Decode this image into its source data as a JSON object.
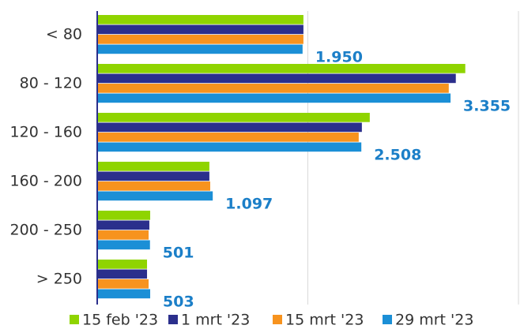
{
  "chart_data": {
    "type": "bar",
    "orientation": "horizontal",
    "categories": [
      "< 80",
      "80 - 120",
      "120 - 160",
      "160 - 200",
      "200 - 250",
      "> 250"
    ],
    "series": [
      {
        "name": "15 feb '23",
        "color": "#8fd400",
        "values": [
          1958,
          3495,
          2588,
          1065,
          503,
          473
        ]
      },
      {
        "name": "1 mrt '23",
        "color": "#2b2f8c",
        "values": [
          1958,
          3405,
          2513,
          1065,
          495,
          473
        ]
      },
      {
        "name": "15 mrt '23",
        "color": "#f7931e",
        "values": [
          1958,
          3338,
          2483,
          1073,
          488,
          488
        ]
      },
      {
        "name": "29 mrt '23",
        "color": "#1b8fd6",
        "values": [
          1950,
          3355,
          2508,
          1097,
          501,
          503
        ],
        "value_labels": [
          "1.950",
          "3.355",
          "2.508",
          "1.097",
          "501",
          "503"
        ]
      }
    ],
    "xlim": [
      0,
      4000
    ],
    "xticks": [
      0,
      2000,
      4000
    ],
    "grid": true
  }
}
